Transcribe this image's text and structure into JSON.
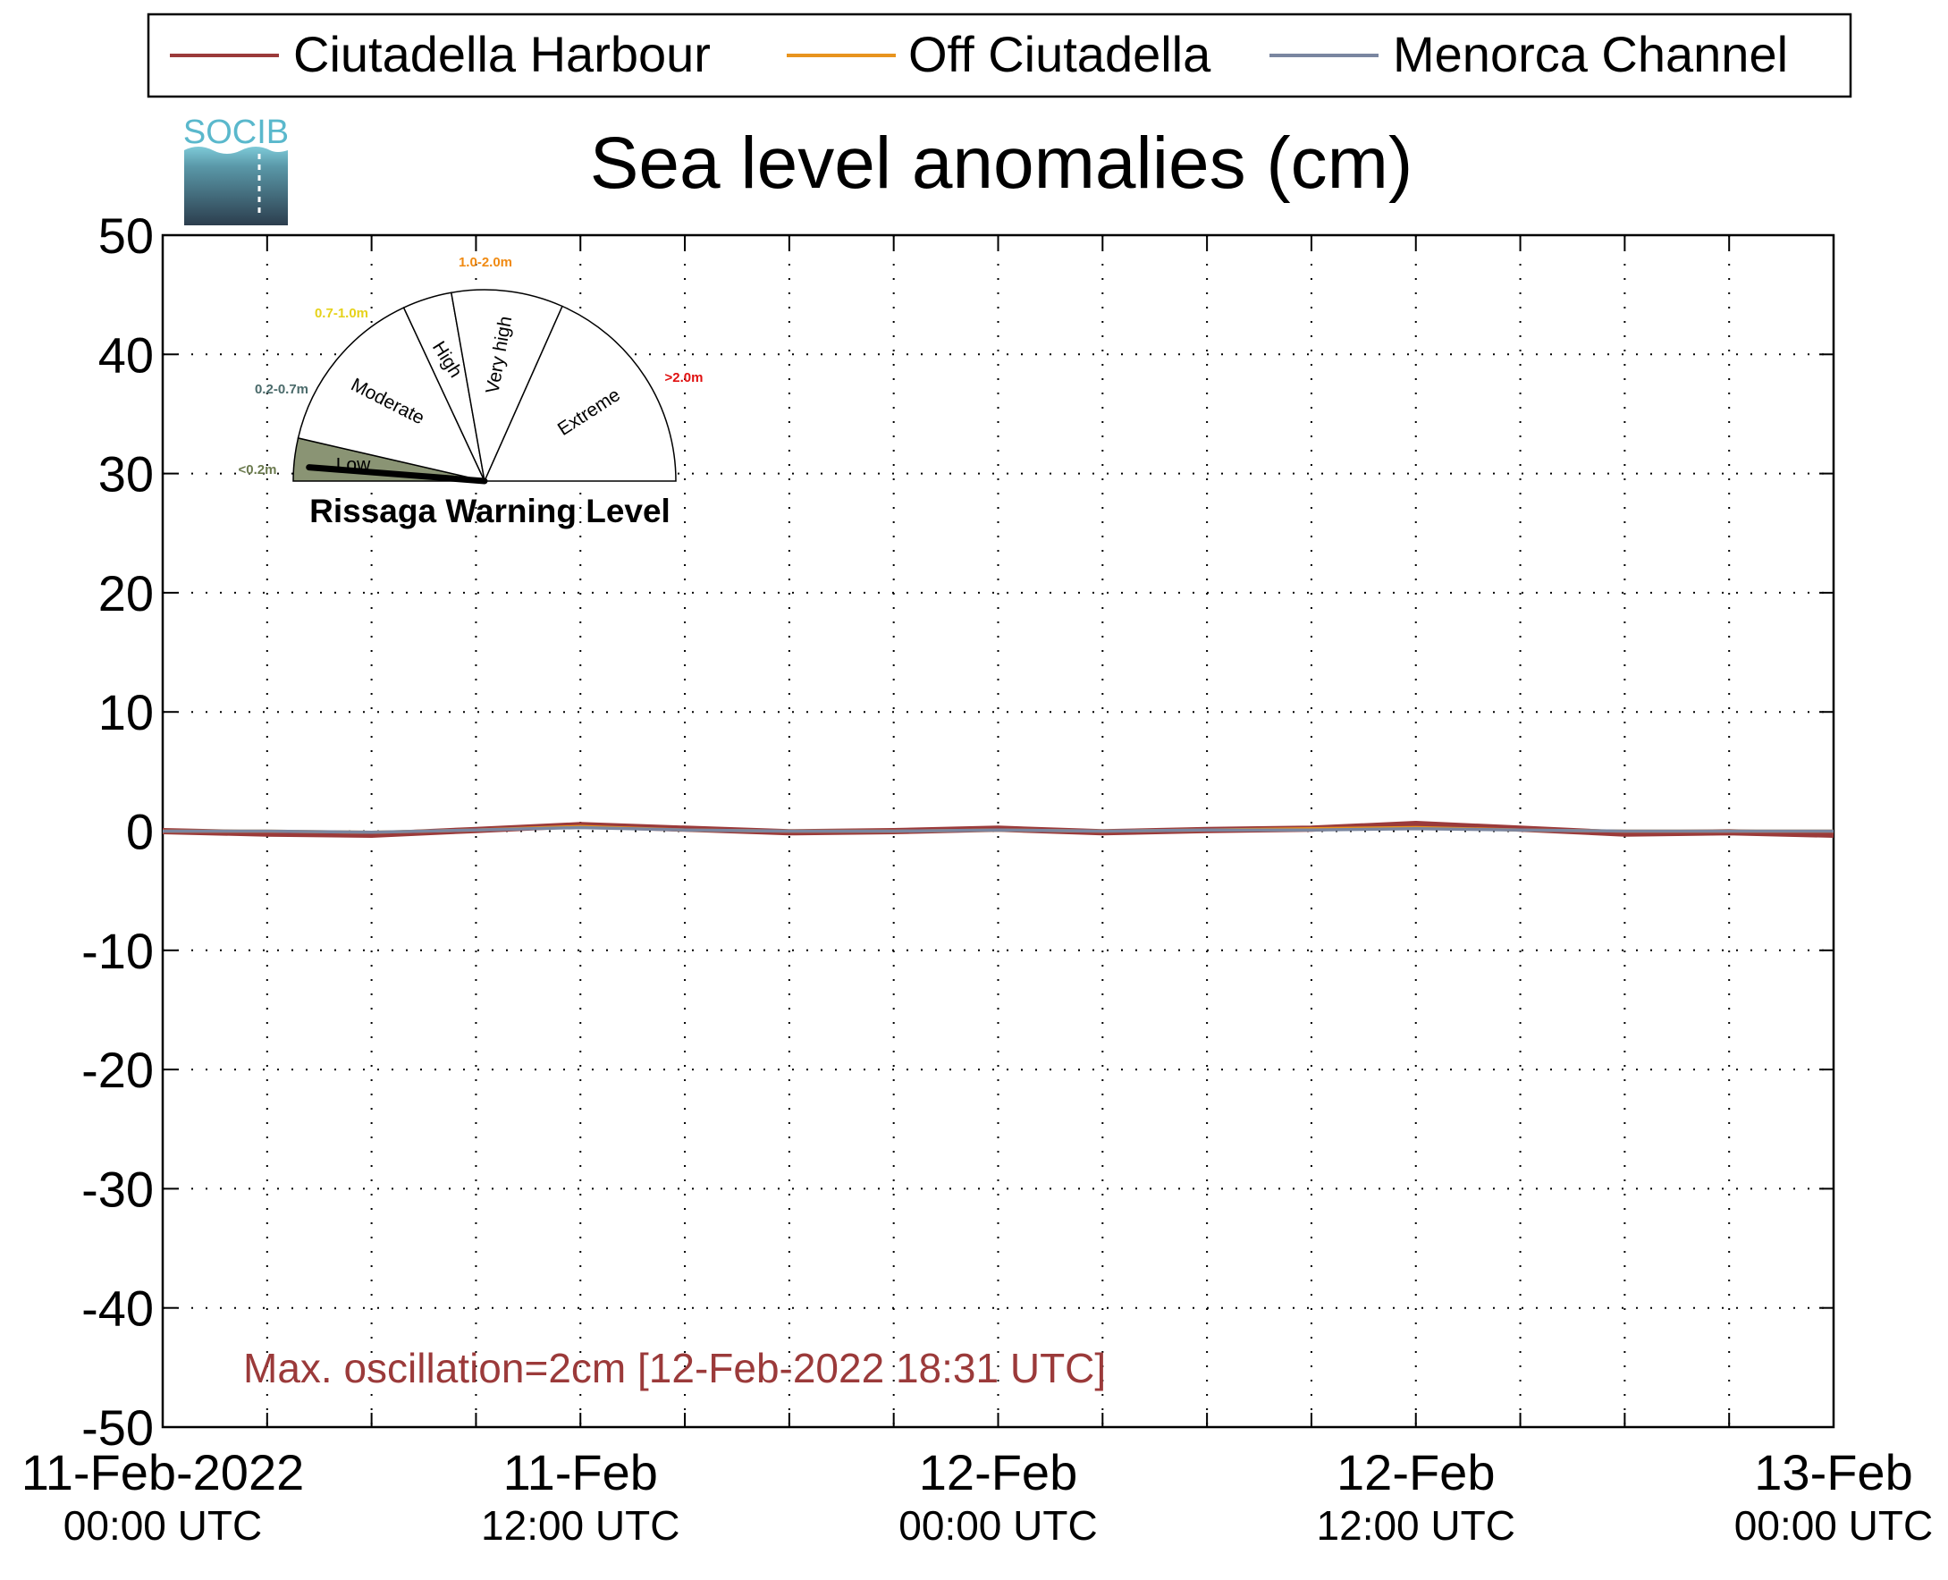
{
  "logo": {
    "text": "SOCIB"
  },
  "legend": {
    "items": [
      {
        "label": "Ciutadella Harbour",
        "color": "#9b3a3a"
      },
      {
        "label": "Off Ciutadella",
        "color": "#e8941e"
      },
      {
        "label": "Menorca Channel",
        "color": "#7a86a0"
      }
    ]
  },
  "gauge": {
    "title": "Rissaga Warning Level",
    "current_level": "Low",
    "sectors": [
      {
        "label": "Low",
        "range": "<0.2m",
        "range_color": "#6b7a4e",
        "fill": "#8a9474"
      },
      {
        "label": "Moderate",
        "range": "0.2-0.7m",
        "range_color": "#4a6a6a",
        "fill": "#ffffff"
      },
      {
        "label": "High",
        "range": "0.7-1.0m",
        "range_color": "#e6d21a",
        "fill": "#ffffff"
      },
      {
        "label": "Very high",
        "range": "1.0-2.0m",
        "range_color": "#f08a12",
        "fill": "#ffffff"
      },
      {
        "label": "Extreme",
        "range": ">2.0m",
        "range_color": "#e01010",
        "fill": "#ffffff"
      }
    ]
  },
  "annotation": {
    "text": "Max. oscillation=2cm [12-Feb-2022 18:31 UTC]",
    "color": "#9b3a3a"
  },
  "chart_data": {
    "type": "line",
    "title": "Sea level anomalies (cm)",
    "xlabel": "",
    "ylabel": "",
    "ylim": [
      -50,
      50
    ],
    "yticks": [
      50,
      40,
      30,
      20,
      10,
      0,
      -10,
      -20,
      -30,
      -40,
      -50
    ],
    "xlim": [
      "2022-02-11T00:00",
      "2022-02-13T00:00"
    ],
    "xticks": [
      {
        "line1": "11-Feb-2022",
        "line2": "00:00 UTC"
      },
      {
        "line1": "11-Feb",
        "line2": "12:00 UTC"
      },
      {
        "line1": "12-Feb",
        "line2": "00:00 UTC"
      },
      {
        "line1": "12-Feb",
        "line2": "12:00 UTC"
      },
      {
        "line1": "13-Feb",
        "line2": "00:00 UTC"
      }
    ],
    "grid": true,
    "legend_position": "top",
    "x": [
      "2022-02-11T00:00",
      "2022-02-11T03:00",
      "2022-02-11T06:00",
      "2022-02-11T09:00",
      "2022-02-11T12:00",
      "2022-02-11T15:00",
      "2022-02-11T18:00",
      "2022-02-11T21:00",
      "2022-02-12T00:00",
      "2022-02-12T03:00",
      "2022-02-12T06:00",
      "2022-02-12T09:00",
      "2022-02-12T12:00",
      "2022-02-12T15:00",
      "2022-02-12T18:00",
      "2022-02-12T21:00",
      "2022-02-13T00:00"
    ],
    "series": [
      {
        "name": "Ciutadella Harbour",
        "values": [
          0,
          -0.2,
          -0.3,
          0.1,
          0.5,
          0.2,
          -0.1,
          0,
          0.2,
          -0.1,
          0.1,
          0.2,
          0.6,
          0.2,
          -0.2,
          -0.1,
          -0.3
        ]
      },
      {
        "name": "Off Ciutadella",
        "values": [
          0,
          0,
          -0.1,
          0.1,
          0.4,
          0.1,
          0,
          0,
          0.1,
          0,
          0.1,
          0.2,
          0.3,
          0.1,
          0,
          0,
          0
        ]
      },
      {
        "name": "Menorca Channel",
        "values": [
          0,
          0,
          -0.1,
          0.1,
          0.3,
          0.1,
          0,
          0,
          0.1,
          0,
          0.1,
          0.1,
          0.2,
          0.1,
          0,
          0,
          0
        ]
      }
    ]
  }
}
